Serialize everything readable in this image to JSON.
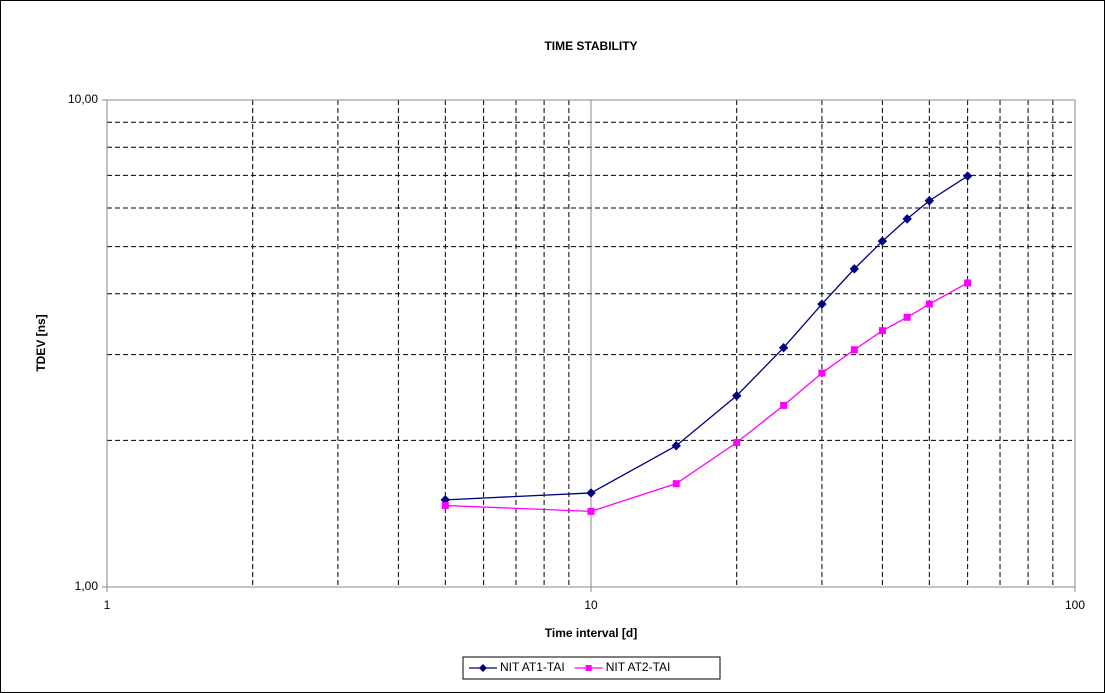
{
  "chart_data": {
    "type": "line",
    "title": "TIME STABILITY",
    "x_label": "Time interval [d]",
    "y_label": "TDEV [ns]",
    "x": [
      5,
      10,
      15,
      20,
      25,
      30,
      35,
      40,
      45,
      50,
      60
    ],
    "series": [
      {
        "name": "NIT AT1-TAI",
        "color": "#000080",
        "marker": "diamond",
        "values": [
          1.51,
          1.56,
          1.95,
          2.47,
          3.1,
          3.81,
          4.5,
          5.13,
          5.7,
          6.21,
          6.98
        ]
      },
      {
        "name": "NIT AT2-TAI",
        "color": "#ff00ff",
        "marker": "square",
        "values": [
          1.47,
          1.43,
          1.63,
          1.98,
          2.36,
          2.75,
          3.07,
          3.36,
          3.58,
          3.81,
          4.21
        ]
      }
    ],
    "x_log": true,
    "y_log": true,
    "xlim": [
      1,
      100
    ],
    "ylim": [
      1,
      10
    ],
    "xticks": [
      1,
      10,
      100
    ],
    "yticks": [
      {
        "value": 1,
        "label": "1,00"
      },
      {
        "value": 10,
        "label": "10,00"
      }
    ],
    "x_minor_ticks": [
      2,
      3,
      4,
      5,
      6,
      7,
      8,
      9,
      20,
      30,
      40,
      50,
      60,
      70,
      80,
      90
    ],
    "y_minor_ticks": [
      2,
      3,
      4,
      5,
      6,
      7,
      8,
      9
    ],
    "grid": true,
    "legend": "bottom"
  }
}
